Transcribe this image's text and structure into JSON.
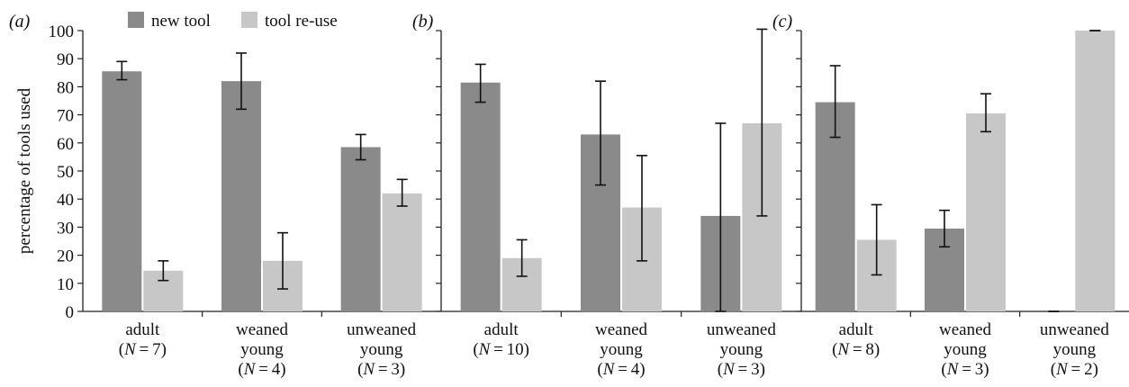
{
  "legend": {
    "placement": "top",
    "items": [
      {
        "label": "new tool",
        "color": "#8a8a8a"
      },
      {
        "label": "tool re-use",
        "color": "#c7c7c7"
      }
    ]
  },
  "chart_data": [
    {
      "panel_label": "(a)",
      "type": "bar",
      "ylabel": "percentage of tools used",
      "ylim": [
        0,
        100
      ],
      "yticks": [
        0,
        10,
        20,
        30,
        40,
        50,
        60,
        70,
        80,
        90,
        100
      ],
      "grid": false,
      "categories": [
        {
          "lines": [
            "adult",
            "(N = 7)"
          ]
        },
        {
          "lines": [
            "weaned",
            "young",
            "(N = 4)"
          ]
        },
        {
          "lines": [
            "unweaned",
            "young",
            "(N = 3)"
          ]
        }
      ],
      "series": [
        {
          "name": "new tool",
          "values": [
            85.5,
            82,
            58.5
          ],
          "err_low": [
            82.5,
            72,
            54
          ],
          "err_high": [
            89,
            92,
            63
          ]
        },
        {
          "name": "tool re-use",
          "values": [
            14.5,
            18,
            42
          ],
          "err_low": [
            11,
            8,
            37.5
          ],
          "err_high": [
            18,
            28,
            47
          ]
        }
      ]
    },
    {
      "panel_label": "(b)",
      "type": "bar",
      "ylim": [
        0,
        100
      ],
      "grid": false,
      "categories": [
        {
          "lines": [
            "adult",
            "(N = 10)"
          ]
        },
        {
          "lines": [
            "weaned",
            "young",
            "(N = 4)"
          ]
        },
        {
          "lines": [
            "unweaned",
            "young",
            "(N = 3)"
          ]
        }
      ],
      "series": [
        {
          "name": "new tool",
          "values": [
            81.5,
            63,
            34
          ],
          "err_low": [
            74.5,
            45,
            0
          ],
          "err_high": [
            88,
            82,
            67
          ]
        },
        {
          "name": "tool re-use",
          "values": [
            19,
            37,
            67
          ],
          "err_low": [
            12.5,
            18,
            34
          ],
          "err_high": [
            25.5,
            55.5,
            100.5
          ]
        }
      ]
    },
    {
      "panel_label": "(c)",
      "type": "bar",
      "ylim": [
        0,
        100
      ],
      "grid": false,
      "categories": [
        {
          "lines": [
            "adult",
            "(N = 8)"
          ]
        },
        {
          "lines": [
            "weaned",
            "young",
            "(N = 3)"
          ]
        },
        {
          "lines": [
            "unweaned",
            "young",
            "(N = 2)"
          ]
        }
      ],
      "series": [
        {
          "name": "new tool",
          "values": [
            74.5,
            29.5,
            0
          ],
          "err_low": [
            62,
            23,
            0
          ],
          "err_high": [
            87.5,
            36,
            0
          ]
        },
        {
          "name": "tool re-use",
          "values": [
            25.5,
            70.5,
            100
          ],
          "err_low": [
            13,
            64,
            100
          ],
          "err_high": [
            38,
            77.5,
            100
          ]
        }
      ]
    }
  ]
}
